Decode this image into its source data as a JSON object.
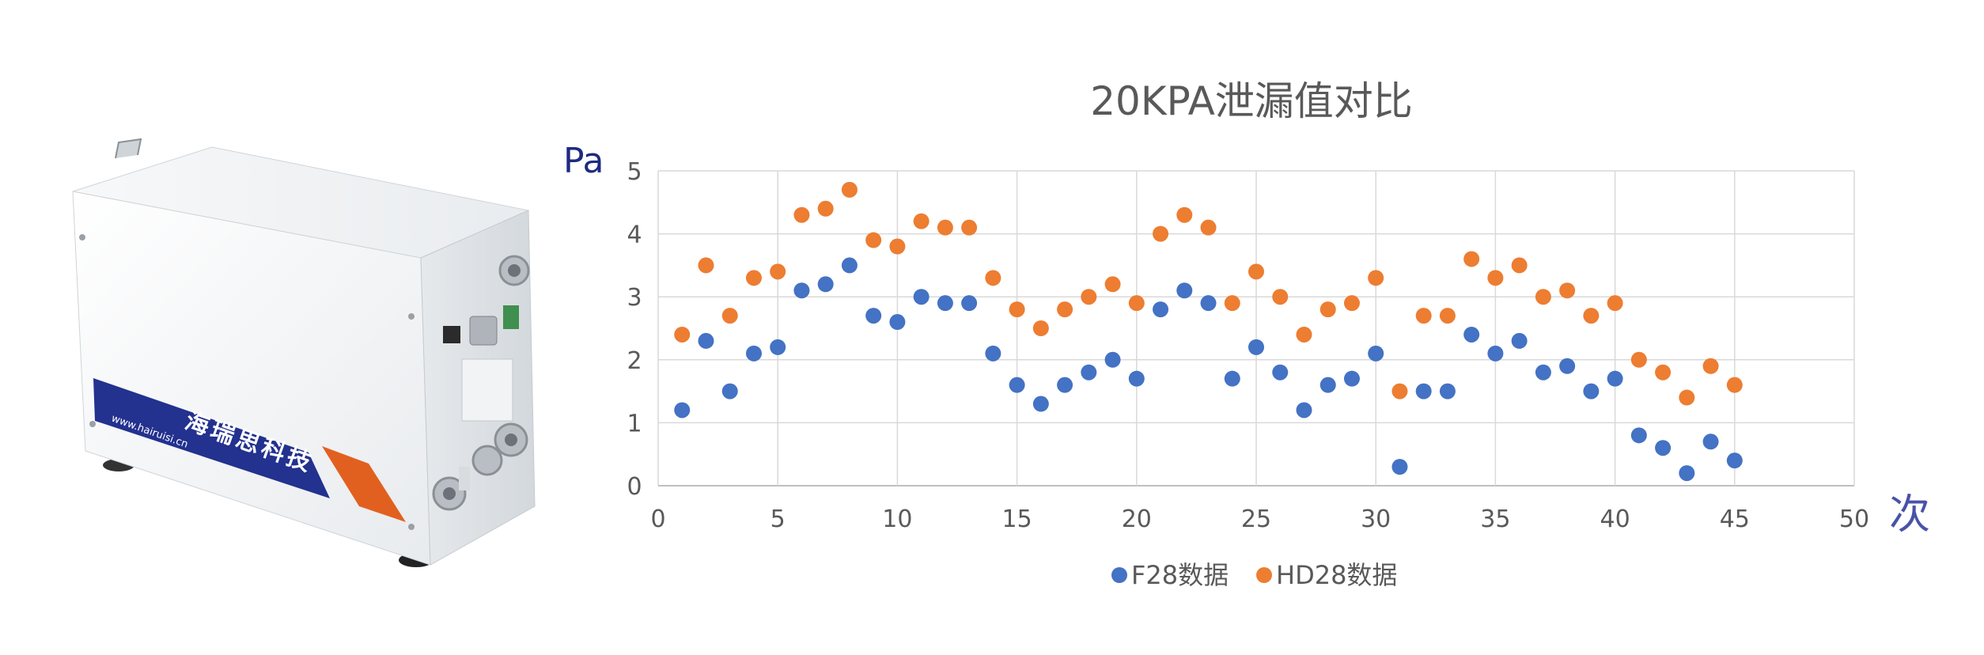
{
  "product": {
    "brand_text": "海瑞思科技",
    "website_text": "www.hairuisi.cn",
    "colors": {
      "banner_blue": "#23318f",
      "banner_orange": "#e2601f",
      "body": "#f2f4f6"
    }
  },
  "chart_data": {
    "type": "scatter",
    "title": "20KPA泄漏值对比",
    "ylabel": "Pa",
    "xlabel": "次",
    "xlim": [
      0,
      50
    ],
    "ylim": [
      0,
      5
    ],
    "x_ticks": [
      0,
      5,
      10,
      15,
      20,
      25,
      30,
      35,
      40,
      45,
      50
    ],
    "y_ticks": [
      0,
      1,
      2,
      3,
      4,
      5
    ],
    "grid": true,
    "legend_position": "bottom",
    "x": [
      1,
      2,
      3,
      4,
      5,
      6,
      7,
      8,
      9,
      10,
      11,
      12,
      13,
      14,
      15,
      16,
      17,
      18,
      19,
      20,
      21,
      22,
      23,
      24,
      25,
      26,
      27,
      28,
      29,
      30,
      31,
      32,
      33,
      34,
      35,
      36,
      37,
      38,
      39,
      40,
      41,
      42,
      43,
      44,
      45
    ],
    "series": [
      {
        "name": "F28数据",
        "color": "#4472c4",
        "values": [
          1.2,
          2.3,
          1.5,
          2.1,
          2.2,
          3.1,
          3.2,
          3.5,
          2.7,
          2.6,
          3.0,
          2.9,
          2.9,
          2.1,
          1.6,
          1.3,
          1.6,
          1.8,
          2.0,
          1.7,
          2.8,
          3.1,
          2.9,
          1.7,
          2.2,
          1.8,
          1.2,
          1.6,
          1.7,
          2.1,
          0.3,
          1.5,
          1.5,
          2.4,
          2.1,
          2.3,
          1.8,
          1.9,
          1.5,
          1.7,
          0.8,
          0.6,
          0.2,
          0.7,
          0.4
        ]
      },
      {
        "name": "HD28数据",
        "color": "#ed7d31",
        "values": [
          2.4,
          3.5,
          2.7,
          3.3,
          3.4,
          4.3,
          4.4,
          4.7,
          3.9,
          3.8,
          4.2,
          4.1,
          4.1,
          3.3,
          2.8,
          2.5,
          2.8,
          3.0,
          3.2,
          2.9,
          4.0,
          4.3,
          4.1,
          2.9,
          3.4,
          3.0,
          2.4,
          2.8,
          2.9,
          3.3,
          1.5,
          2.7,
          2.7,
          3.6,
          3.3,
          3.5,
          3.0,
          3.1,
          2.7,
          2.9,
          2.0,
          1.8,
          1.4,
          1.9,
          1.6
        ]
      }
    ]
  }
}
